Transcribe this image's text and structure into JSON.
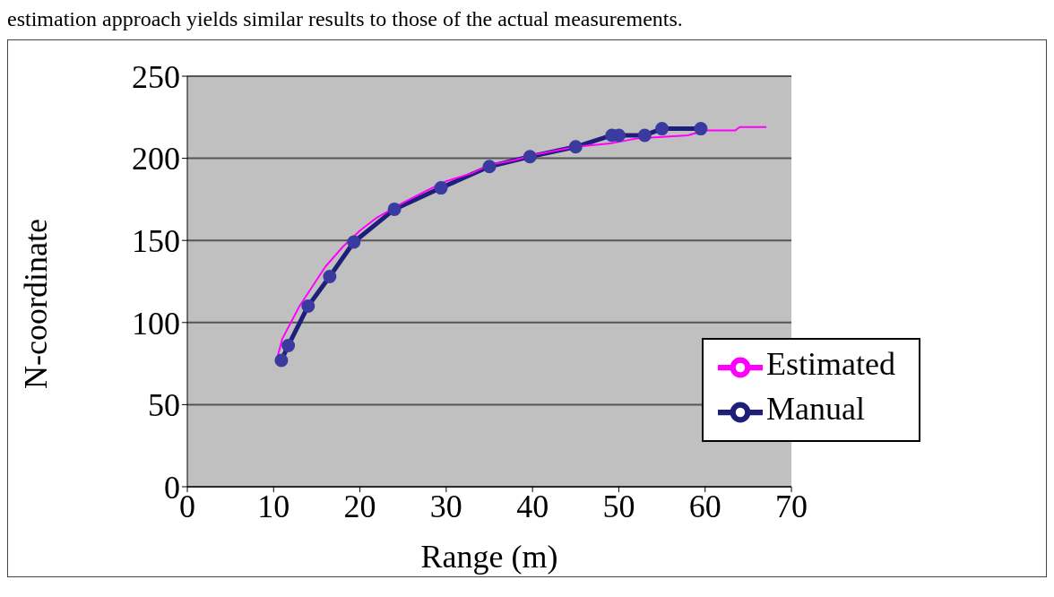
{
  "chart_data": {
    "type": "line",
    "xlabel": "Range (m)",
    "ylabel": "N-coordinate",
    "annotations": [
      "estimation approach yields similar results to those of the actual measurements."
    ],
    "series": [
      {
        "name": "Manual",
        "color": "#1f1f7a",
        "marker": "circle",
        "x": [
          10.9,
          11.7,
          14,
          16.5,
          19.3,
          24,
          29.4,
          35,
          39.7,
          45,
          49.2,
          50,
          53,
          55,
          59.5
        ],
        "values": [
          77,
          86,
          110,
          128,
          149,
          169,
          182,
          195,
          201,
          207,
          214,
          214,
          214,
          218,
          218
        ]
      },
      {
        "name": "Estimated",
        "color": "#ff00ff",
        "marker": "none",
        "x": [
          10.4,
          11,
          12,
          13,
          14.5,
          16,
          18,
          20,
          22,
          25,
          28,
          30,
          33,
          35,
          38,
          40,
          45,
          49,
          52,
          55,
          58,
          60,
          63.5,
          64,
          67.1
        ],
        "values": [
          78,
          90,
          100,
          110,
          122,
          134,
          146,
          156,
          164,
          173,
          181,
          186,
          191,
          196,
          199,
          202,
          207,
          209,
          212,
          213,
          214,
          217,
          217,
          219,
          219
        ]
      }
    ],
    "xlim": [
      0,
      70
    ],
    "xticks": [
      0,
      10,
      20,
      30,
      40,
      50,
      60,
      70
    ],
    "ylim": [
      0,
      250
    ],
    "yticks": [
      0,
      50,
      100,
      150,
      200,
      250
    ],
    "grid": "y",
    "legend": "bottom right"
  }
}
